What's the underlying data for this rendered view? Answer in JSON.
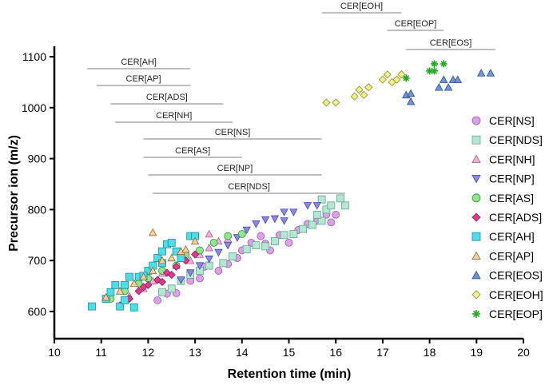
{
  "chart_data": {
    "type": "scatter",
    "title": "",
    "xlabel": "Retention time (min)",
    "ylabel": "Precursor ion (m/z)",
    "xlim": [
      10,
      20
    ],
    "ylim": [
      560,
      1110
    ],
    "xticks": [
      10,
      11,
      12,
      13,
      14,
      15,
      16,
      17,
      18,
      19,
      20
    ],
    "yticks": [
      600,
      700,
      800,
      900,
      1000,
      1100
    ],
    "legend_position": "right",
    "series": [
      {
        "name": "CER[NS]",
        "marker": "circle",
        "fill": "#dca0e6",
        "stroke": "#9a5aa8",
        "points": [
          [
            12.2,
            622
          ],
          [
            12.4,
            635
          ],
          [
            12.6,
            636
          ],
          [
            12.9,
            660
          ],
          [
            13.1,
            665
          ],
          [
            13.2,
            688
          ],
          [
            13.5,
            680
          ],
          [
            13.7,
            693
          ],
          [
            13.9,
            705
          ],
          [
            14.0,
            720
          ],
          [
            14.2,
            735
          ],
          [
            14.4,
            748
          ],
          [
            14.5,
            733
          ],
          [
            14.6,
            720
          ],
          [
            14.8,
            750
          ],
          [
            15.0,
            735
          ],
          [
            15.2,
            760
          ],
          [
            15.4,
            772
          ],
          [
            15.6,
            778
          ],
          [
            15.8,
            790
          ],
          [
            15.9,
            775
          ],
          [
            16.0,
            790
          ]
        ]
      },
      {
        "name": "CER[NDS]",
        "marker": "square",
        "fill": "#b5e6d4",
        "stroke": "#5aa88a",
        "points": [
          [
            12.3,
            638
          ],
          [
            12.5,
            645
          ],
          [
            12.7,
            660
          ],
          [
            12.9,
            672
          ],
          [
            13.1,
            680
          ],
          [
            13.3,
            690
          ],
          [
            13.6,
            695
          ],
          [
            13.8,
            708
          ],
          [
            14.1,
            722
          ],
          [
            14.3,
            730
          ],
          [
            14.5,
            728
          ],
          [
            14.7,
            738
          ],
          [
            14.9,
            750
          ],
          [
            15.1,
            752
          ],
          [
            15.3,
            762
          ],
          [
            15.5,
            770
          ],
          [
            15.7,
            778
          ],
          [
            15.6,
            790
          ],
          [
            15.8,
            800
          ],
          [
            15.9,
            808
          ],
          [
            16.2,
            808
          ],
          [
            16.1,
            822
          ],
          [
            15.7,
            820
          ]
        ]
      },
      {
        "name": "CER[NH]",
        "marker": "triangle-up",
        "fill": "#f0b0dc",
        "stroke": "#a8608c",
        "points": [
          [
            11.6,
            630
          ],
          [
            11.9,
            645
          ],
          [
            12.1,
            660
          ],
          [
            12.3,
            675
          ],
          [
            12.6,
            690
          ],
          [
            12.9,
            700
          ],
          [
            13.1,
            712
          ],
          [
            13.3,
            725
          ],
          [
            13.5,
            738
          ],
          [
            13.7,
            742
          ],
          [
            13.3,
            752
          ]
        ]
      },
      {
        "name": "CER[NP]",
        "marker": "triangle-down",
        "fill": "#8a8ae6",
        "stroke": "#4646a8",
        "points": [
          [
            12.7,
            662
          ],
          [
            12.9,
            676
          ],
          [
            13.1,
            690
          ],
          [
            13.3,
            703
          ],
          [
            13.5,
            716
          ],
          [
            13.7,
            730
          ],
          [
            13.9,
            745
          ],
          [
            14.1,
            760
          ],
          [
            14.3,
            772
          ],
          [
            14.5,
            780
          ],
          [
            14.7,
            782
          ],
          [
            14.9,
            795
          ],
          [
            15.1,
            795
          ],
          [
            15.4,
            808
          ],
          [
            15.6,
            808
          ],
          [
            14.9,
            778
          ]
        ]
      },
      {
        "name": "CER[AS]",
        "marker": "circle",
        "fill": "#8ee68e",
        "stroke": "#3a8a3a",
        "points": [
          [
            11.2,
            625
          ],
          [
            11.5,
            640
          ],
          [
            11.8,
            655
          ],
          [
            12.0,
            665
          ],
          [
            12.3,
            680
          ],
          [
            12.6,
            690
          ],
          [
            12.8,
            710
          ],
          [
            13.1,
            720
          ],
          [
            13.4,
            735
          ],
          [
            13.7,
            748
          ],
          [
            14.0,
            752
          ]
        ]
      },
      {
        "name": "CER[ADS]",
        "marker": "diamond",
        "fill": "#dc3c8c",
        "stroke": "#8c1c5a",
        "points": [
          [
            11.4,
            612
          ],
          [
            11.6,
            625
          ],
          [
            11.8,
            640
          ],
          [
            12.0,
            652
          ],
          [
            12.2,
            662
          ],
          [
            12.4,
            676
          ],
          [
            12.6,
            688
          ],
          [
            12.8,
            700
          ],
          [
            13.0,
            712
          ],
          [
            12.5,
            672
          ],
          [
            12.3,
            658
          ],
          [
            11.9,
            648
          ]
        ]
      },
      {
        "name": "CER[AH]",
        "marker": "square",
        "fill": "#50dce6",
        "stroke": "#1c8c9a",
        "points": [
          [
            10.8,
            610
          ],
          [
            11.1,
            625
          ],
          [
            11.2,
            638
          ],
          [
            11.3,
            652
          ],
          [
            11.5,
            652
          ],
          [
            11.6,
            668
          ],
          [
            11.4,
            610
          ],
          [
            11.5,
            622
          ],
          [
            11.7,
            608
          ],
          [
            11.8,
            668
          ],
          [
            12.0,
            680
          ],
          [
            12.1,
            690
          ],
          [
            12.2,
            705
          ],
          [
            12.3,
            718
          ],
          [
            12.4,
            732
          ],
          [
            12.6,
            718
          ],
          [
            12.7,
            705
          ],
          [
            12.9,
            748
          ],
          [
            13.0,
            748
          ],
          [
            12.3,
            695
          ],
          [
            12.5,
            735
          ],
          [
            11.9,
            670
          ]
        ]
      },
      {
        "name": "CER[AP]",
        "marker": "triangle-up",
        "fill": "#f0d2a0",
        "stroke": "#8c6432",
        "points": [
          [
            11.1,
            628
          ],
          [
            11.4,
            640
          ],
          [
            11.7,
            655
          ],
          [
            11.9,
            668
          ],
          [
            12.1,
            680
          ],
          [
            12.3,
            700
          ],
          [
            12.5,
            705
          ],
          [
            12.7,
            718
          ],
          [
            12.8,
            722
          ],
          [
            13.0,
            738
          ],
          [
            12.1,
            755
          ]
        ]
      },
      {
        "name": "CER[EOS]",
        "marker": "triangle-up",
        "fill": "#6e96d2",
        "stroke": "#2a4a8a",
        "points": [
          [
            17.5,
            1025
          ],
          [
            17.6,
            1012
          ],
          [
            17.6,
            1028
          ],
          [
            18.2,
            1040
          ],
          [
            18.4,
            1040
          ],
          [
            18.3,
            1055
          ],
          [
            18.5,
            1055
          ],
          [
            18.6,
            1055
          ],
          [
            19.1,
            1068
          ],
          [
            19.3,
            1068
          ]
        ]
      },
      {
        "name": "CER[EOH]",
        "marker": "diamond",
        "fill": "#f0f08c",
        "stroke": "#8c8c28",
        "points": [
          [
            15.8,
            1010
          ],
          [
            16.0,
            1010
          ],
          [
            16.4,
            1022
          ],
          [
            16.5,
            1035
          ],
          [
            16.6,
            1025
          ],
          [
            16.7,
            1040
          ],
          [
            17.0,
            1055
          ],
          [
            17.1,
            1065
          ],
          [
            17.2,
            1050
          ],
          [
            17.3,
            1055
          ],
          [
            17.4,
            1065
          ]
        ]
      },
      {
        "name": "CER[EOP]",
        "marker": "asterisk",
        "fill": "#22a822",
        "stroke": "#22a822",
        "points": [
          [
            17.5,
            1058
          ],
          [
            18.0,
            1072
          ],
          [
            18.1,
            1072
          ],
          [
            18.1,
            1086
          ],
          [
            18.3,
            1086
          ]
        ]
      }
    ],
    "annotations": [
      {
        "label": "CER[EOH]",
        "x_start": 15.7,
        "x_end": 17.4,
        "y_offset_rank": 0
      },
      {
        "label": "CER[EOP]",
        "x_start": 17.1,
        "x_end": 18.3,
        "y_offset_rank": 1
      },
      {
        "label": "CER[EOS]",
        "x_start": 17.5,
        "x_end": 19.4,
        "y_offset_rank": 2
      },
      {
        "label": "CER[AH]",
        "x_start": 10.7,
        "x_end": 12.9,
        "y_offset_rank": 3
      },
      {
        "label": "CER[AP]",
        "x_start": 10.9,
        "x_end": 12.9,
        "y_offset_rank": 4
      },
      {
        "label": "CER[ADS]",
        "x_start": 11.2,
        "x_end": 13.6,
        "y_offset_rank": 5
      },
      {
        "label": "CER[NH]",
        "x_start": 11.3,
        "x_end": 13.8,
        "y_offset_rank": 6
      },
      {
        "label": "CER[NS]",
        "x_start": 11.9,
        "x_end": 15.7,
        "y_offset_rank": 7
      },
      {
        "label": "CER[AS]",
        "x_start": 11.9,
        "x_end": 14.0,
        "y_offset_rank": 8
      },
      {
        "label": "CER[NP]",
        "x_start": 12.0,
        "x_end": 15.7,
        "y_offset_rank": 9
      },
      {
        "label": "CER[NDS]",
        "x_start": 12.1,
        "x_end": 16.2,
        "y_offset_rank": 10
      }
    ]
  }
}
